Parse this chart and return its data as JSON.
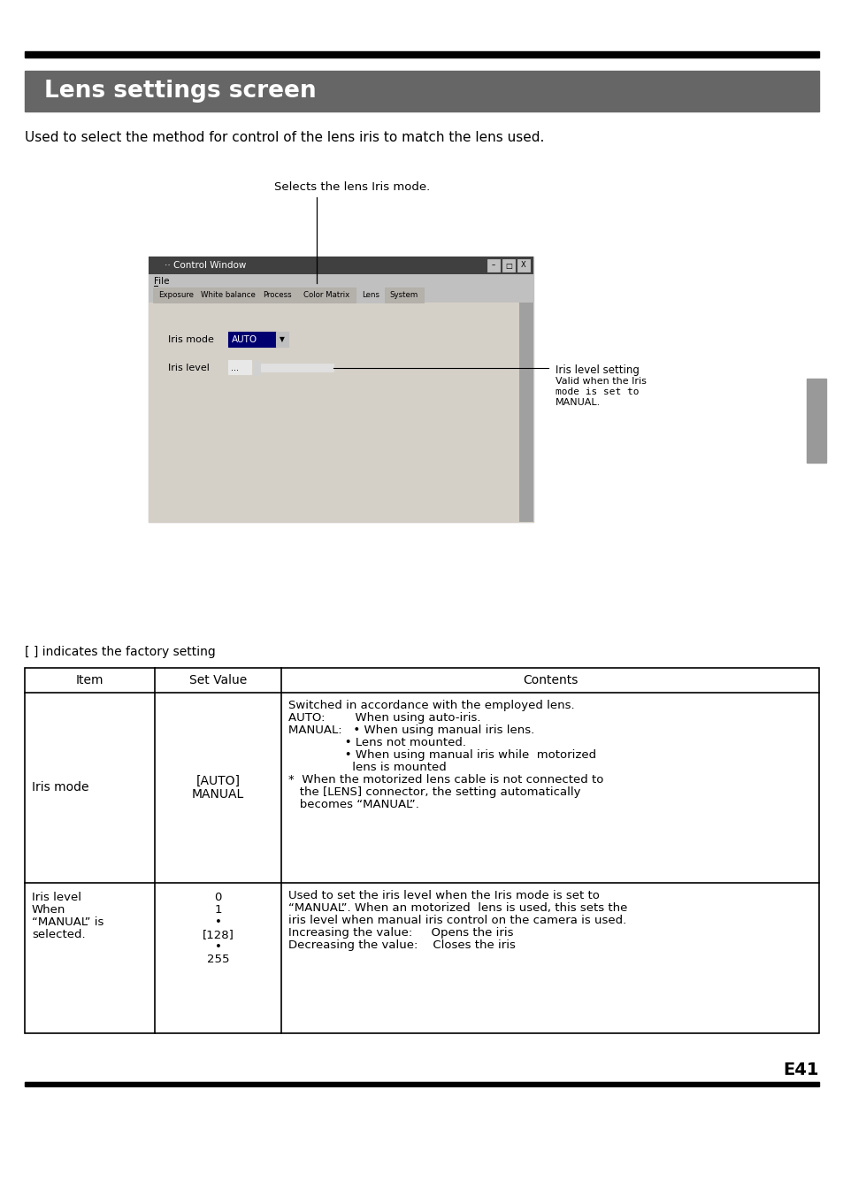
{
  "title": "Lens settings screen",
  "title_bg_color": "#666666",
  "title_text_color": "#ffffff",
  "page_bg_color": "#ffffff",
  "intro_text": "Used to select the method for control of the lens iris to match the lens used.",
  "annotation_top": "Selects the lens Iris mode.",
  "annotation_right_line1": "Iris level setting",
  "annotation_right_line2": "Valid when the Iris",
  "annotation_right_line3": "mode is set to",
  "annotation_right_line4": "MANUAL.",
  "window_title": "·· Control Window",
  "menu_item": "File",
  "tabs": [
    "Exposure",
    "White balance",
    "Process",
    "Color Matrix",
    "Lens",
    "System"
  ],
  "active_tab": "Lens",
  "label1": "Iris mode",
  "label2": "Iris level",
  "dropdown_text": "AUTO",
  "slider_value": "...",
  "factory_note": "[ ] indicates the factory setting",
  "table_headers": [
    "Item",
    "Set Value",
    "Contents"
  ],
  "row1_item": "Iris mode",
  "row1_value_line1": "[AUTO]",
  "row1_value_line2": "MANUAL",
  "row1_contents_lines": [
    "Switched in accordance with the employed lens.",
    "AUTO:        When using auto-iris.",
    "MANUAL:   • When using manual iris lens.",
    "               • Lens not mounted.",
    "               • When using manual iris while  motorized",
    "                 lens is mounted",
    "*  When the motorized lens cable is not connected to",
    "   the [LENS] connector, the setting automatically",
    "   becomes “MANUAL”."
  ],
  "row2_item_lines": [
    "Iris level",
    "When",
    "“MANUAL” is",
    "selected."
  ],
  "row2_value_lines": [
    "0",
    "1",
    "•",
    "[128]",
    "•",
    "255"
  ],
  "row2_contents_lines": [
    "Used to set the iris level when the Iris mode is set to",
    "“MANUAL”. When an motorized  lens is used, this sets the",
    "iris level when manual iris control on the camera is used.",
    "Increasing the value:     Opens the iris",
    "Decreasing the value:    Closes the iris"
  ],
  "page_number": "E41",
  "top_bar_color": "#000000",
  "bottom_bar_color": "#000000",
  "table_border_color": "#000000",
  "window_bg": "#c0c0c0",
  "content_bg": "#d4d0c8",
  "sidebar_color": "#999999"
}
